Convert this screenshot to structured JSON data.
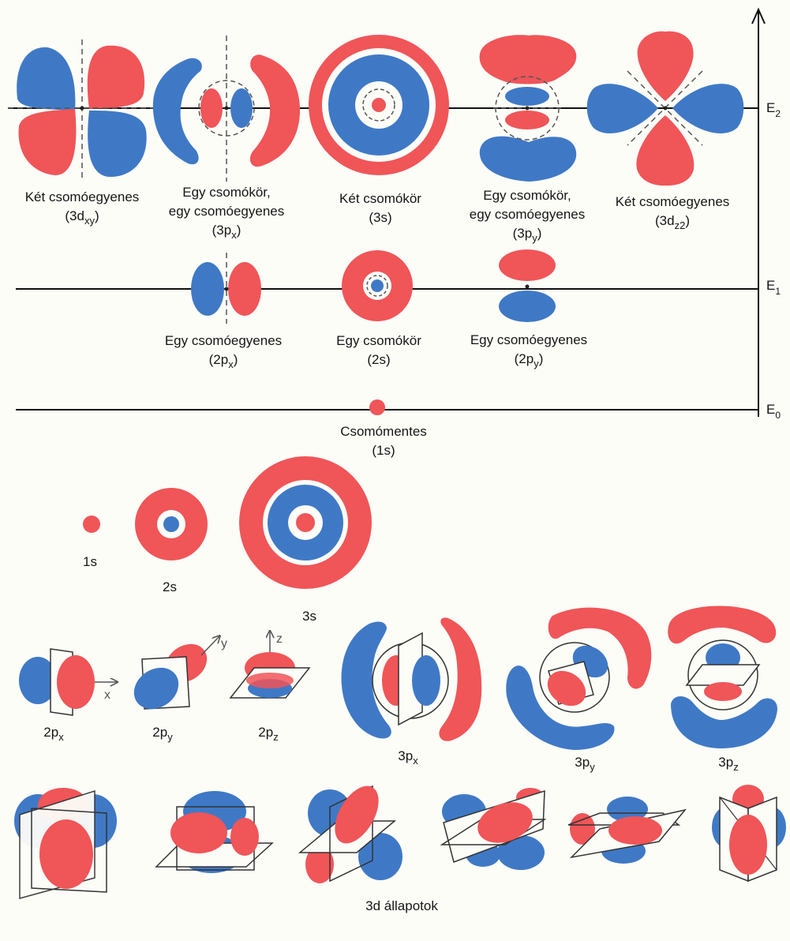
{
  "colors": {
    "red": "#f05558",
    "blue": "#3f79c6",
    "line": "#111111",
    "dash": "#555555",
    "background": "#fdfdf8"
  },
  "energy_levels": [
    {
      "label": "E",
      "subscript": "2"
    },
    {
      "label": "E",
      "subscript": "1"
    },
    {
      "label": "E",
      "subscript": "0"
    }
  ],
  "level2_orbitals": [
    {
      "line1": "Két csomóegyenes",
      "line2_pre": "(3d",
      "line2_sub": "xy",
      "line2_post": ")",
      "line3_pre": "",
      "line3_sub": "",
      "line3_post": ""
    },
    {
      "line1": "Egy csomókör,",
      "line2_pre": "egy csomóegyenes",
      "line2_sub": "",
      "line2_post": "",
      "line3_pre": "(3p",
      "line3_sub": "x",
      "line3_post": ")"
    },
    {
      "line1": "Két csomókör",
      "line2_pre": "(3s)",
      "line2_sub": "",
      "line2_post": "",
      "line3_pre": "",
      "line3_sub": "",
      "line3_post": ""
    },
    {
      "line1": "Egy csomókör,",
      "line2_pre": "egy csomóegyenes",
      "line2_sub": "",
      "line2_post": "",
      "line3_pre": "(3p",
      "line3_sub": "y",
      "line3_post": ")"
    },
    {
      "line1": "Két csomóegyenes",
      "line2_pre": "(3d",
      "line2_sub": "z2",
      "line2_post": ")",
      "line3_pre": "",
      "line3_sub": "",
      "line3_post": ""
    }
  ],
  "level1_orbitals": [
    {
      "line1": "Egy csomóegyenes",
      "line2_pre": "(2p",
      "line2_sub": "x",
      "line2_post": ")"
    },
    {
      "line1": "Egy csomókör",
      "line2_pre": "(2s)",
      "line2_sub": "",
      "line2_post": ""
    },
    {
      "line1": "Egy csomóegyenes",
      "line2_pre": "(2p",
      "line2_sub": "y",
      "line2_post": ")"
    }
  ],
  "level0_orbital": {
    "line1": "Csomómentes",
    "line2": "(1s)"
  },
  "s_orbitals": [
    {
      "name": "1s"
    },
    {
      "name": "2s"
    },
    {
      "name": "3s"
    }
  ],
  "p_orbitals": [
    {
      "pre": "2p",
      "sub": "x"
    },
    {
      "pre": "2p",
      "sub": "y"
    },
    {
      "pre": "2p",
      "sub": "z"
    },
    {
      "pre": "3p",
      "sub": "x"
    },
    {
      "pre": "3p",
      "sub": "y"
    },
    {
      "pre": "3p",
      "sub": "z"
    }
  ],
  "axes": {
    "x": "x",
    "y": "y",
    "z": "z"
  },
  "d_states_label": "3d állapotok"
}
